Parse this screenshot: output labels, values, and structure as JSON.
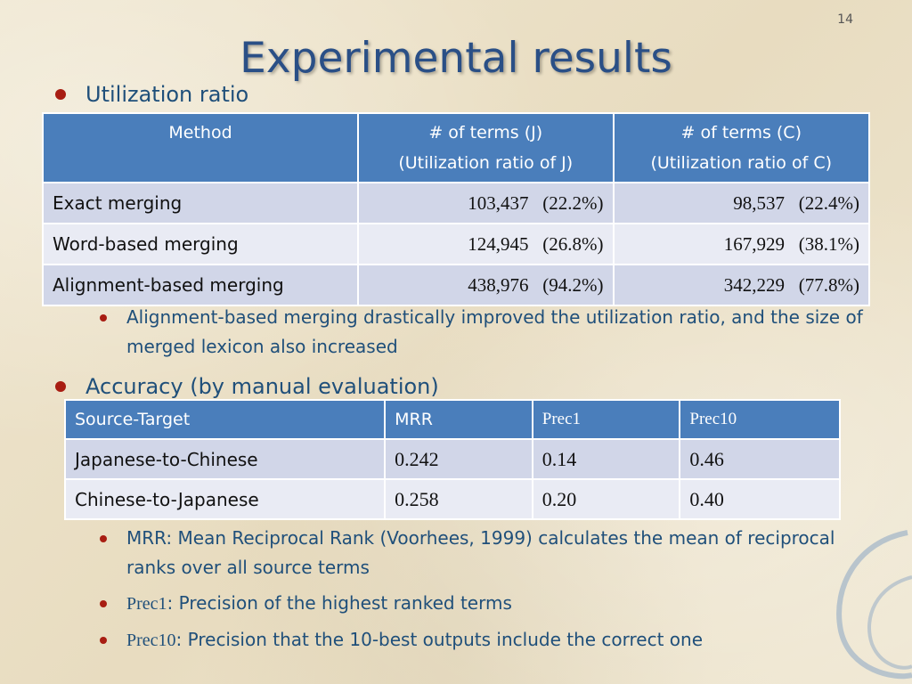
{
  "page_number": "14",
  "title": "Experimental results",
  "section1": {
    "heading": "Utilization ratio",
    "table": {
      "headers": [
        [
          "Method",
          ""
        ],
        [
          "# of terms (J)",
          "(Utilization ratio of J)"
        ],
        [
          "# of terms (C)",
          "(Utilization ratio of C)"
        ]
      ],
      "rows": [
        {
          "method": "Exact merging",
          "j": "103,437   (22.2%)",
          "c": "98,537   (22.4%)"
        },
        {
          "method": "Word-based merging",
          "j": "124,945   (26.8%)",
          "c": "167,929   (38.1%)"
        },
        {
          "method": "Alignment-based merging",
          "j": "438,976   (94.2%)",
          "c": "342,229   (77.8%)"
        }
      ]
    },
    "note": "Alignment-based merging drastically improved the utilization ratio, and the size of merged lexicon also increased"
  },
  "section2": {
    "heading": "Accuracy (by manual evaluation)",
    "table": {
      "headers": [
        "Source-Target",
        "MRR",
        "Prec1",
        "Prec10"
      ],
      "rows": [
        {
          "pair": "Japanese-to-Chinese",
          "mrr": "0.242",
          "p1": "0.14",
          "p10": "0.46"
        },
        {
          "pair": "Chinese-to-Japanese",
          "mrr": "0.258",
          "p1": "0.20",
          "p10": "0.40"
        }
      ]
    },
    "notes": {
      "mrr": "MRR: Mean Reciprocal Rank (Voorhees, 1999) calculates the mean of reciprocal ranks over all source terms",
      "prec1_term": "Prec1",
      "prec1_text": ": Precision of the highest ranked terms",
      "prec10_term": "Prec10",
      "prec10_text": ":  Precision that the 10-best outputs include the correct one"
    }
  },
  "colors": {
    "title": "#2a4f86",
    "header_bg": "#4a7ebb",
    "row_odd": "#d1d6e8",
    "row_even": "#e9ebf4",
    "bullet": "#a81d12",
    "text": "#1f4f7a"
  }
}
